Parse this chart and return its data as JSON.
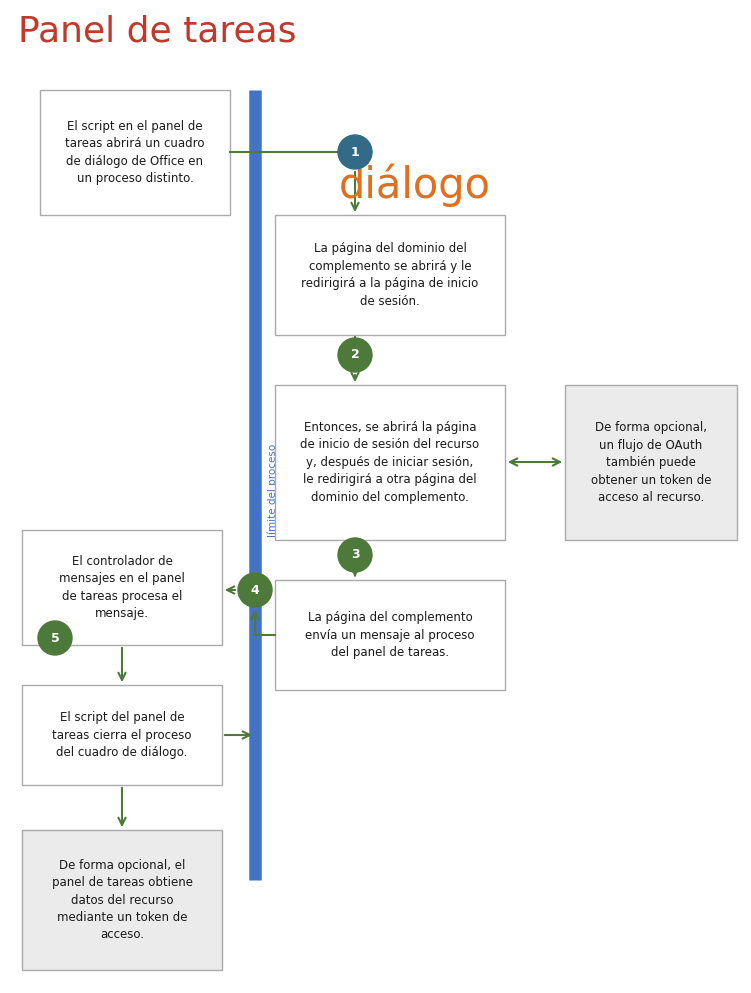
{
  "title": "Panel de tareas",
  "title_color": "#C0392B",
  "dialog_label": "diálogo",
  "dialog_color": "#E07020",
  "line_label": "límite del proceso",
  "line_color": "#4472C4",
  "arrow_color": "#4D7A3A",
  "circle_teal": "#336B87",
  "circle_green": "#4D7A3A",
  "box_border": "#AAAAAA",
  "box_white": "#FFFFFF",
  "box_gray": "#EBEBEB",
  "fig_w": 7.51,
  "fig_h": 9.93,
  "dpi": 100
}
